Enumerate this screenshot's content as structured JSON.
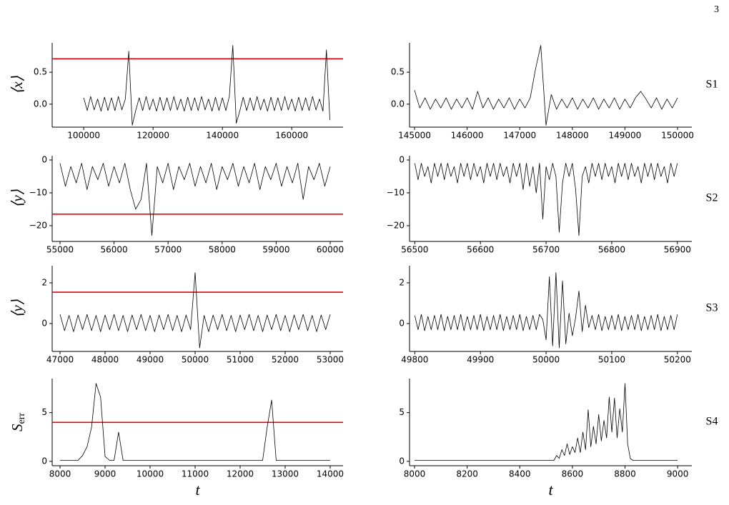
{
  "page_number": "3",
  "chart_data": [
    {
      "type": "line",
      "ylabel": "⟨x⟩",
      "color": "#000000",
      "xlim": [
        90900,
        174800
      ],
      "ylim": [
        -0.36,
        0.96
      ],
      "xticks": [
        100000,
        120000,
        140000,
        160000
      ],
      "yticks": [
        {
          "value": 0,
          "label": "0.0"
        },
        {
          "value": 0.5,
          "label": "0.5"
        }
      ],
      "threshold": {
        "value": 0.71,
        "color": "#e8000b"
      },
      "x": [
        100000,
        101000,
        102000,
        103000,
        104000,
        105000,
        106000,
        107000,
        108000,
        109000,
        110000,
        111000,
        112000,
        113000,
        114000,
        115000,
        116000,
        117000,
        118000,
        119000,
        120000,
        121000,
        122000,
        123000,
        124000,
        125000,
        126000,
        127000,
        128000,
        129000,
        130000,
        131000,
        132000,
        133000,
        134000,
        135000,
        136000,
        137000,
        138000,
        139000,
        140000,
        141000,
        142000,
        143000,
        144000,
        145000,
        146000,
        147000,
        148000,
        149000,
        150000,
        151000,
        152000,
        153000,
        154000,
        155000,
        156000,
        157000,
        158000,
        159000,
        160000,
        161000,
        162000,
        163000,
        164000,
        165000,
        166000,
        167000,
        168000,
        169000,
        170000,
        171000
      ],
      "values": [
        0.1,
        -0.1,
        0.12,
        -0.09,
        0.08,
        -0.11,
        0.11,
        -0.1,
        0.1,
        -0.1,
        0.12,
        -0.09,
        0.08,
        0.83,
        -0.33,
        -0.1,
        0.1,
        -0.1,
        0.12,
        -0.09,
        0.08,
        -0.11,
        0.11,
        -0.1,
        0.1,
        -0.1,
        0.12,
        -0.09,
        0.08,
        -0.11,
        0.11,
        -0.1,
        0.1,
        -0.1,
        0.12,
        -0.09,
        0.08,
        -0.11,
        0.11,
        -0.1,
        0.1,
        -0.1,
        0.12,
        0.92,
        -0.3,
        -0.11,
        0.11,
        -0.1,
        0.1,
        -0.1,
        0.12,
        -0.09,
        0.08,
        -0.11,
        0.11,
        -0.1,
        0.1,
        -0.1,
        0.12,
        -0.09,
        0.08,
        -0.11,
        0.11,
        -0.1,
        0.1,
        -0.1,
        0.12,
        -0.09,
        0.08,
        -0.11,
        0.85,
        -0.25
      ]
    },
    {
      "type": "line",
      "row_label": "S1",
      "color": "#000000",
      "xlim": [
        144905,
        150272
      ],
      "ylim": [
        -0.36,
        0.96
      ],
      "xticks": [
        145000,
        146000,
        147000,
        148000,
        149000,
        150000
      ],
      "yticks": [
        {
          "value": 0,
          "label": "0.0"
        },
        {
          "value": 0.5,
          "label": "0.5"
        }
      ],
      "x": [
        145000,
        145100,
        145200,
        145300,
        145400,
        145500,
        145600,
        145700,
        145800,
        145900,
        146000,
        146100,
        146200,
        146300,
        146400,
        146500,
        146600,
        146700,
        146800,
        146900,
        147000,
        147100,
        147200,
        147300,
        147400,
        147500,
        147600,
        147700,
        147800,
        147900,
        148000,
        148100,
        148200,
        148300,
        148400,
        148500,
        148600,
        148700,
        148800,
        148900,
        149000,
        149100,
        149200,
        149300,
        149400,
        149500,
        149600,
        149700,
        149800,
        149900,
        150000
      ],
      "values": [
        0.22,
        -0.06,
        0.1,
        -0.08,
        0.08,
        -0.06,
        0.1,
        -0.08,
        0.08,
        -0.06,
        0.1,
        -0.08,
        0.2,
        -0.06,
        0.1,
        -0.08,
        0.08,
        -0.06,
        0.1,
        -0.08,
        0.08,
        -0.06,
        0.1,
        0.55,
        0.92,
        -0.33,
        0.15,
        -0.08,
        0.08,
        -0.06,
        0.1,
        -0.08,
        0.08,
        -0.06,
        0.1,
        -0.08,
        0.08,
        -0.06,
        0.1,
        -0.08,
        0.08,
        -0.06,
        0.1,
        0.2,
        0.08,
        -0.06,
        0.1,
        -0.08,
        0.08,
        -0.06,
        0.1
      ]
    },
    {
      "type": "line",
      "ylabel": "⟨y⟩",
      "color": "#000000",
      "xlim": [
        54855,
        60238
      ],
      "ylim": [
        -24.8,
        1.3
      ],
      "xticks": [
        55000,
        56000,
        57000,
        58000,
        59000,
        60000
      ],
      "yticks": [
        {
          "value": -20,
          "label": "−20"
        },
        {
          "value": -10,
          "label": "−10"
        },
        0
      ],
      "threshold": {
        "value": -16.5,
        "color": "#e8000b"
      },
      "x": [
        55000,
        55100,
        55200,
        55300,
        55400,
        55500,
        55600,
        55700,
        55800,
        55900,
        56000,
        56100,
        56200,
        56300,
        56400,
        56500,
        56600,
        56700,
        56800,
        56900,
        57000,
        57100,
        57200,
        57300,
        57400,
        57500,
        57600,
        57700,
        57800,
        57900,
        58000,
        58100,
        58200,
        58300,
        58400,
        58500,
        58600,
        58700,
        58800,
        58900,
        59000,
        59100,
        59200,
        59300,
        59400,
        59500,
        59600,
        59700,
        59800,
        59900,
        60000
      ],
      "values": [
        -1,
        -8,
        -2,
        -7,
        -1,
        -9,
        -2,
        -6,
        -1,
        -8,
        -2,
        -7,
        -1,
        -9,
        -15,
        -12,
        -1,
        -23,
        -2,
        -7,
        -1,
        -9,
        -2,
        -6,
        -1,
        -8,
        -2,
        -7,
        -1,
        -9,
        -2,
        -6,
        -1,
        -8,
        -2,
        -7,
        -1,
        -9,
        -2,
        -6,
        -1,
        -8,
        -2,
        -7,
        -1,
        -12,
        -2,
        -6,
        -1,
        -8,
        -2
      ]
    },
    {
      "type": "line",
      "row_label": "S2",
      "color": "#000000",
      "xlim": [
        56492,
        56922
      ],
      "ylim": [
        -24.8,
        1.3
      ],
      "xticks": [
        56500,
        56600,
        56700,
        56800,
        56900
      ],
      "yticks": [
        {
          "value": -20,
          "label": "−20"
        },
        {
          "value": -10,
          "label": "−10"
        },
        0
      ],
      "x": [
        56500,
        56505,
        56510,
        56515,
        56520,
        56525,
        56530,
        56535,
        56540,
        56545,
        56550,
        56555,
        56560,
        56565,
        56570,
        56575,
        56580,
        56585,
        56590,
        56595,
        56600,
        56605,
        56610,
        56615,
        56620,
        56625,
        56630,
        56635,
        56640,
        56645,
        56650,
        56655,
        56660,
        56665,
        56670,
        56675,
        56680,
        56685,
        56690,
        56695,
        56700,
        56705,
        56710,
        56715,
        56720,
        56725,
        56730,
        56735,
        56740,
        56745,
        56750,
        56755,
        56760,
        56765,
        56770,
        56775,
        56780,
        56785,
        56790,
        56795,
        56800,
        56805,
        56810,
        56815,
        56820,
        56825,
        56830,
        56835,
        56840,
        56845,
        56850,
        56855,
        56860,
        56865,
        56870,
        56875,
        56880,
        56885,
        56890,
        56895,
        56900
      ],
      "values": [
        -1,
        -6,
        -1,
        -5,
        -2,
        -7,
        -1,
        -5,
        -1,
        -6,
        -1,
        -5,
        -2,
        -7,
        -1,
        -5,
        -1,
        -6,
        -1,
        -5,
        -2,
        -7,
        -1,
        -5,
        -1,
        -6,
        -1,
        -5,
        -2,
        -7,
        -1,
        -5,
        -1,
        -9,
        -1,
        -8,
        -2,
        -10,
        -1,
        -18,
        -2,
        -6,
        -1,
        -5,
        -22,
        -7,
        -1,
        -5,
        -1,
        -9,
        -23,
        -5,
        -2,
        -7,
        -1,
        -5,
        -1,
        -6,
        -1,
        -5,
        -2,
        -7,
        -1,
        -5,
        -1,
        -6,
        -1,
        -5,
        -2,
        -7,
        -1,
        -5,
        -1,
        -6,
        -1,
        -5,
        -2,
        -7,
        -1,
        -5,
        -1
      ]
    },
    {
      "type": "line",
      "ylabel": "⟨y⟩",
      "color": "#000000",
      "xlim": [
        46825,
        53286
      ],
      "ylim": [
        -1.37,
        2.84
      ],
      "xticks": [
        47000,
        48000,
        49000,
        50000,
        51000,
        52000,
        53000
      ],
      "yticks": [
        0,
        2
      ],
      "threshold": {
        "value": 1.54,
        "color": "#e8000b"
      },
      "x": [
        47000,
        47100,
        47200,
        47300,
        47400,
        47500,
        47600,
        47700,
        47800,
        47900,
        48000,
        48100,
        48200,
        48300,
        48400,
        48500,
        48600,
        48700,
        48800,
        48900,
        49000,
        49100,
        49200,
        49300,
        49400,
        49500,
        49600,
        49700,
        49800,
        49900,
        50000,
        50100,
        50200,
        50300,
        50400,
        50500,
        50600,
        50700,
        50800,
        50900,
        51000,
        51100,
        51200,
        51300,
        51400,
        51500,
        51600,
        51700,
        51800,
        51900,
        52000,
        52100,
        52200,
        52300,
        52400,
        52500,
        52600,
        52700,
        52800,
        52900,
        53000
      ],
      "values": [
        0.45,
        -0.35,
        0.4,
        -0.4,
        0.42,
        -0.3,
        0.45,
        -0.35,
        0.4,
        -0.4,
        0.42,
        -0.3,
        0.45,
        -0.35,
        0.4,
        -0.4,
        0.42,
        -0.3,
        0.45,
        -0.35,
        0.4,
        -0.4,
        0.42,
        -0.3,
        0.45,
        -0.35,
        0.4,
        -0.4,
        0.42,
        -0.3,
        2.5,
        -1.2,
        0.4,
        -0.4,
        0.42,
        -0.3,
        0.45,
        -0.35,
        0.4,
        -0.4,
        0.42,
        -0.3,
        0.45,
        -0.35,
        0.4,
        -0.4,
        0.42,
        -0.3,
        0.45,
        -0.35,
        0.4,
        -0.4,
        0.42,
        -0.3,
        0.45,
        -0.35,
        0.4,
        -0.4,
        0.42,
        -0.3,
        0.45
      ]
    },
    {
      "type": "line",
      "row_label": "S3",
      "color": "#000000",
      "xlim": [
        49792,
        50222
      ],
      "ylim": [
        -1.37,
        2.84
      ],
      "xticks": [
        49800,
        49900,
        50000,
        50100,
        50200
      ],
      "yticks": [
        0,
        2
      ],
      "x": [
        49800,
        49805,
        49810,
        49815,
        49820,
        49825,
        49830,
        49835,
        49840,
        49845,
        49850,
        49855,
        49860,
        49865,
        49870,
        49875,
        49880,
        49885,
        49890,
        49895,
        49900,
        49905,
        49910,
        49915,
        49920,
        49925,
        49930,
        49935,
        49940,
        49945,
        49950,
        49955,
        49960,
        49965,
        49970,
        49975,
        49980,
        49985,
        49990,
        49995,
        50000,
        50005,
        50010,
        50015,
        50020,
        50025,
        50030,
        50035,
        50040,
        50045,
        50050,
        50055,
        50060,
        50065,
        50070,
        50075,
        50080,
        50085,
        50090,
        50095,
        50100,
        50105,
        50110,
        50115,
        50120,
        50125,
        50130,
        50135,
        50140,
        50145,
        50150,
        50155,
        50160,
        50165,
        50170,
        50175,
        50180,
        50185,
        50190,
        50195,
        50200
      ],
      "values": [
        0.4,
        -0.3,
        0.45,
        -0.35,
        0.35,
        -0.3,
        0.4,
        -0.3,
        0.45,
        -0.35,
        0.35,
        -0.3,
        0.4,
        -0.3,
        0.45,
        -0.35,
        0.35,
        -0.3,
        0.4,
        -0.3,
        0.45,
        -0.35,
        0.35,
        -0.3,
        0.4,
        -0.3,
        0.45,
        -0.35,
        0.35,
        -0.3,
        0.4,
        -0.3,
        0.45,
        -0.35,
        0.35,
        -0.3,
        0.4,
        -0.3,
        0.45,
        0.2,
        -0.8,
        2.3,
        -1.1,
        2.5,
        -1.2,
        2.1,
        -1.0,
        0.5,
        -0.6,
        0.3,
        1.6,
        -0.4,
        0.9,
        -0.2,
        0.4,
        -0.3,
        0.45,
        -0.35,
        0.35,
        -0.3,
        0.4,
        -0.3,
        0.45,
        -0.35,
        0.35,
        -0.3,
        0.4,
        -0.3,
        0.45,
        -0.35,
        0.35,
        -0.3,
        0.4,
        -0.3,
        0.45,
        -0.35,
        0.35,
        -0.3,
        0.4,
        -0.3,
        0.45
      ]
    },
    {
      "type": "line",
      "ylabel": "S",
      "ylabel_subscript": "err",
      "xlabel": "t",
      "color": "#000000",
      "xlim": [
        7825,
        14286
      ],
      "ylim": [
        -0.45,
        8.5
      ],
      "xticks": [
        8000,
        9000,
        10000,
        11000,
        12000,
        13000,
        14000
      ],
      "yticks": [
        0,
        5
      ],
      "threshold": {
        "value": 4.0,
        "color": "#e8000b"
      },
      "x": [
        8000,
        8100,
        8200,
        8300,
        8400,
        8500,
        8600,
        8700,
        8800,
        8900,
        9000,
        9100,
        9200,
        9300,
        9400,
        9500,
        9600,
        9700,
        9800,
        9900,
        10000,
        10100,
        10200,
        10300,
        10400,
        10500,
        10600,
        10700,
        10800,
        10900,
        11000,
        11100,
        11200,
        11300,
        11400,
        11500,
        11600,
        11700,
        11800,
        11900,
        12000,
        12100,
        12200,
        12300,
        12400,
        12500,
        12600,
        12700,
        12800,
        12900,
        13000,
        13100,
        13200,
        13300,
        13400,
        13500,
        13600,
        13700,
        13800,
        13900,
        14000
      ],
      "values": [
        0.1,
        0.1,
        0.1,
        0.1,
        0.1,
        0.6,
        1.5,
        3.5,
        8,
        6.6,
        0.5,
        0.1,
        0.1,
        3,
        0.1,
        0.1,
        0.1,
        0.1,
        0.1,
        0.1,
        0.1,
        0.1,
        0.1,
        0.1,
        0.1,
        0.1,
        0.1,
        0.1,
        0.1,
        0.1,
        0.1,
        0.1,
        0.1,
        0.1,
        0.1,
        0.1,
        0.1,
        0.1,
        0.1,
        0.1,
        0.1,
        0.1,
        0.1,
        0.1,
        0.1,
        0.1,
        3.5,
        6.3,
        0.1,
        0.1,
        0.1,
        0.1,
        0.1,
        0.1,
        0.1,
        0.1,
        0.1,
        0.1,
        0.1,
        0.1,
        0.1
      ]
    },
    {
      "type": "line",
      "row_label": "S4",
      "xlabel": "t",
      "color": "#000000",
      "xlim": [
        7981,
        9054
      ],
      "ylim": [
        -0.45,
        8.5
      ],
      "xticks": [
        8000,
        8200,
        8400,
        8600,
        8800,
        9000
      ],
      "yticks": [
        0,
        5
      ],
      "x": [
        8000,
        8010,
        8020,
        8030,
        8040,
        8050,
        8060,
        8070,
        8080,
        8090,
        8100,
        8110,
        8120,
        8130,
        8140,
        8150,
        8160,
        8170,
        8180,
        8190,
        8200,
        8210,
        8220,
        8230,
        8240,
        8250,
        8260,
        8270,
        8280,
        8290,
        8300,
        8310,
        8320,
        8330,
        8340,
        8350,
        8360,
        8370,
        8380,
        8390,
        8400,
        8410,
        8420,
        8430,
        8440,
        8450,
        8460,
        8470,
        8480,
        8490,
        8500,
        8510,
        8520,
        8530,
        8540,
        8550,
        8560,
        8570,
        8580,
        8590,
        8600,
        8610,
        8620,
        8630,
        8640,
        8650,
        8660,
        8670,
        8680,
        8690,
        8700,
        8710,
        8720,
        8730,
        8740,
        8750,
        8760,
        8770,
        8780,
        8790,
        8800,
        8810,
        8820,
        8830,
        8840,
        8850,
        8860,
        8870,
        8880,
        8890,
        8900,
        8910,
        8920,
        8930,
        8940,
        8950,
        8960,
        8970,
        8980,
        8990,
        9000
      ],
      "values": [
        0.1,
        0.1,
        0.1,
        0.1,
        0.1,
        0.1,
        0.1,
        0.1,
        0.1,
        0.1,
        0.1,
        0.1,
        0.1,
        0.1,
        0.1,
        0.1,
        0.1,
        0.1,
        0.1,
        0.1,
        0.1,
        0.1,
        0.1,
        0.1,
        0.1,
        0.1,
        0.1,
        0.1,
        0.1,
        0.1,
        0.1,
        0.1,
        0.1,
        0.1,
        0.1,
        0.1,
        0.1,
        0.1,
        0.1,
        0.1,
        0.1,
        0.1,
        0.1,
        0.1,
        0.1,
        0.1,
        0.1,
        0.1,
        0.1,
        0.1,
        0.1,
        0.1,
        0.1,
        0.1,
        0.6,
        0.3,
        1.2,
        0.6,
        1.8,
        0.7,
        1.5,
        0.9,
        2.4,
        0.9,
        3,
        1.2,
        5.3,
        1.5,
        3.6,
        1.8,
        4.8,
        2.1,
        4.2,
        2.4,
        6.6,
        3,
        6.5,
        2.4,
        5.4,
        3,
        8,
        1.8,
        0.3,
        0.1,
        0.1,
        0.1,
        0.1,
        0.1,
        0.1,
        0.1,
        0.1,
        0.1,
        0.1,
        0.1,
        0.1,
        0.1,
        0.1,
        0.1,
        0.1,
        0.1,
        0.1
      ]
    }
  ]
}
